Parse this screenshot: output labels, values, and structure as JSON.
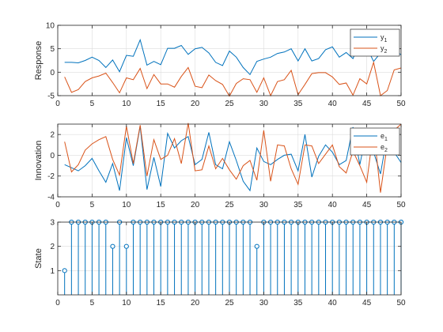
{
  "chart_data": [
    {
      "type": "line",
      "ylabel": "Response",
      "xlim": [
        0,
        50
      ],
      "ylim": [
        -5,
        10
      ],
      "xticks": [
        0,
        5,
        10,
        15,
        20,
        25,
        30,
        35,
        40,
        45,
        50
      ],
      "yticks": [
        -5,
        0,
        5,
        10
      ],
      "grid": true,
      "legend_position": "top-right",
      "x": [
        1,
        2,
        3,
        4,
        5,
        6,
        7,
        8,
        9,
        10,
        11,
        12,
        13,
        14,
        15,
        16,
        17,
        18,
        19,
        20,
        21,
        22,
        23,
        24,
        25,
        26,
        27,
        28,
        29,
        30,
        31,
        32,
        33,
        34,
        35,
        36,
        37,
        38,
        39,
        40,
        41,
        42,
        43,
        44,
        45,
        46,
        47,
        48,
        49,
        50
      ],
      "series": [
        {
          "name": "y_1",
          "color": "#0072BD",
          "values": [
            2.1,
            2.1,
            2.0,
            2.5,
            3.2,
            2.5,
            1.0,
            2.6,
            0.1,
            3.6,
            3.4,
            6.9,
            1.5,
            2.3,
            1.6,
            5.1,
            5.1,
            5.7,
            3.8,
            5.0,
            5.3,
            4.1,
            2.1,
            1.4,
            4.5,
            3.2,
            1.0,
            -0.5,
            2.3,
            2.8,
            3.2,
            4.0,
            4.3,
            5.0,
            2.4,
            5.0,
            2.4,
            2.9,
            4.8,
            5.4,
            3.2,
            4.2,
            2.9,
            6.5,
            5.3,
            2.3,
            4.1,
            4.0,
            4.8,
            3.7
          ]
        },
        {
          "name": "y_2",
          "color": "#D95319",
          "values": [
            -1.0,
            -4.3,
            -3.7,
            -2.0,
            -1.2,
            -0.8,
            -0.2,
            -2.2,
            -4.4,
            -1.2,
            -1.6,
            0.8,
            -3.5,
            -0.5,
            -2.5,
            -2.5,
            -3.2,
            -0.9,
            1.0,
            -3.0,
            -3.3,
            -0.6,
            -1.8,
            -2.6,
            -5.1,
            -2.4,
            -1.4,
            -1.6,
            -4.3,
            -1.2,
            -5.0,
            -2.0,
            -1.6,
            0.4,
            -4.8,
            -2.6,
            -0.3,
            -0.1,
            -0.1,
            -1.0,
            -2.6,
            -2.3,
            -4.9,
            -1.4,
            -2.5,
            2.1,
            -5.0,
            -3.9,
            0.5,
            0.9
          ]
        }
      ]
    },
    {
      "type": "line",
      "ylabel": "Innovation",
      "xlim": [
        0,
        50
      ],
      "ylim": [
        -4,
        3
      ],
      "xticks": [
        0,
        5,
        10,
        15,
        20,
        25,
        30,
        35,
        40,
        45,
        50
      ],
      "yticks": [
        -4,
        -2,
        0,
        2
      ],
      "grid": true,
      "legend_position": "top-right",
      "x": [
        1,
        2,
        3,
        4,
        5,
        6,
        7,
        8,
        9,
        10,
        11,
        12,
        13,
        14,
        15,
        16,
        17,
        18,
        19,
        20,
        21,
        22,
        23,
        24,
        25,
        26,
        27,
        28,
        29,
        30,
        31,
        32,
        33,
        34,
        35,
        36,
        37,
        38,
        39,
        40,
        41,
        42,
        43,
        44,
        45,
        46,
        47,
        48,
        49,
        50
      ],
      "series": [
        {
          "name": "e_1",
          "color": "#0072BD",
          "values": [
            -0.9,
            -1.2,
            -1.5,
            -1.0,
            -0.3,
            -1.5,
            -2.6,
            -0.8,
            -3.4,
            1.7,
            -1.0,
            2.8,
            -3.3,
            -0.2,
            -3.0,
            2.1,
            0.7,
            1.4,
            1.8,
            -0.9,
            -0.4,
            2.2,
            -0.9,
            -1.3,
            1.3,
            -0.5,
            -2.5,
            -3.4,
            0.7,
            -0.6,
            -0.9,
            -0.4,
            0.0,
            0.1,
            -1.5,
            2.0,
            -2.1,
            -0.1,
            1.0,
            0.3,
            -0.9,
            -0.5,
            2.7,
            -0.9,
            2.4,
            0.3,
            -1.8,
            2.0,
            0.3,
            -0.7
          ]
        },
        {
          "name": "e_2",
          "color": "#D95319",
          "values": [
            1.3,
            -1.6,
            -0.9,
            0.5,
            1.1,
            1.5,
            1.8,
            -0.4,
            -1.9,
            2.8,
            -0.8,
            2.9,
            -2.0,
            1.5,
            -0.4,
            0.0,
            1.6,
            -0.8,
            3.1,
            -1.5,
            -1.4,
            0.9,
            -1.3,
            -0.3,
            -1.4,
            -2.3,
            -1.0,
            -0.5,
            -2.4,
            2.4,
            -2.5,
            1.0,
            0.9,
            -1.3,
            -2.8,
            1.0,
            0.9,
            -0.8,
            0.1,
            1.0,
            -1.1,
            -1.7,
            0.4,
            -1.0,
            -2.6,
            2.5,
            -3.6,
            1.1,
            2.4,
            3.0
          ]
        }
      ]
    },
    {
      "type": "stem",
      "ylabel": "State",
      "xlim": [
        0,
        50
      ],
      "ylim": [
        0,
        3
      ],
      "xticks": [
        0,
        5,
        10,
        15,
        20,
        25,
        30,
        35,
        40,
        45,
        50
      ],
      "yticks": [
        1,
        2,
        3
      ],
      "grid": true,
      "color": "#0072BD",
      "x": [
        1,
        2,
        3,
        4,
        5,
        6,
        7,
        8,
        9,
        10,
        11,
        12,
        13,
        14,
        15,
        16,
        17,
        18,
        19,
        20,
        21,
        22,
        23,
        24,
        25,
        26,
        27,
        28,
        29,
        30,
        31,
        32,
        33,
        34,
        35,
        36,
        37,
        38,
        39,
        40,
        41,
        42,
        43,
        44,
        45,
        46,
        47,
        48,
        49,
        50
      ],
      "values": [
        1,
        3,
        3,
        3,
        3,
        3,
        3,
        2,
        3,
        2,
        3,
        3,
        3,
        3,
        3,
        3,
        3,
        3,
        3,
        3,
        3,
        3,
        3,
        3,
        3,
        3,
        3,
        3,
        2,
        3,
        3,
        3,
        3,
        3,
        3,
        3,
        3,
        3,
        3,
        3,
        3,
        3,
        3,
        3,
        3,
        3,
        3,
        3,
        3,
        3
      ]
    }
  ]
}
